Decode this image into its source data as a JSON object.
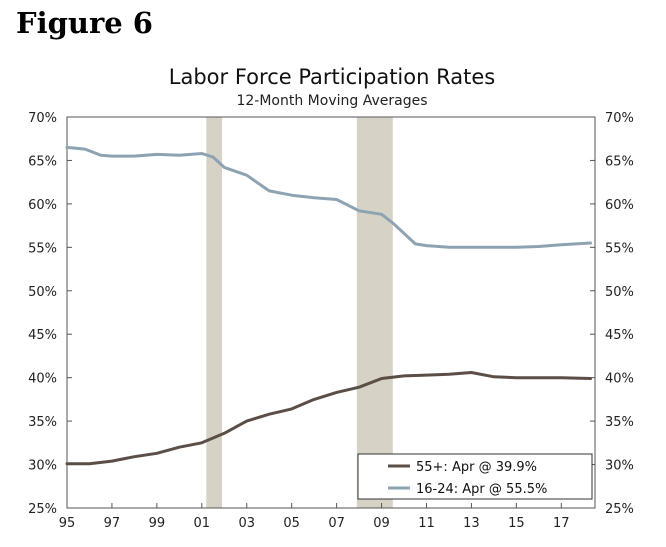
{
  "figure_label": "Figure 6",
  "chart_data": {
    "type": "line",
    "title": "Labor Force Participation Rates",
    "subtitle": "12-Month Moving Averages",
    "xlabel": "",
    "ylabel": "",
    "xlim": [
      1995,
      2018.5
    ],
    "ylim": [
      25,
      70
    ],
    "x_tick_values": [
      1995,
      1997,
      1999,
      2001,
      2003,
      2005,
      2007,
      2009,
      2011,
      2013,
      2015,
      2017
    ],
    "x_tick_labels": [
      "95",
      "97",
      "99",
      "01",
      "03",
      "05",
      "07",
      "09",
      "11",
      "13",
      "15",
      "17"
    ],
    "y_tick_values": [
      25,
      30,
      35,
      40,
      45,
      50,
      55,
      60,
      65,
      70
    ],
    "y_tick_labels": [
      "25%",
      "30%",
      "35%",
      "40%",
      "45%",
      "50%",
      "55%",
      "60%",
      "65%",
      "70%"
    ],
    "grid": false,
    "recessions": [
      [
        2001.2,
        2001.9
      ],
      [
        2007.9,
        2009.5
      ]
    ],
    "legend_position": "bottom-right",
    "series": [
      {
        "name": "55+: Apr @ 39.9%",
        "color": "#5b4e47",
        "x": [
          1995,
          1996,
          1997,
          1998,
          1999,
          2000,
          2001,
          2002,
          2003,
          2004,
          2005,
          2006,
          2007,
          2008,
          2009,
          2010,
          2011,
          2012,
          2013,
          2014,
          2015,
          2016,
          2017,
          2018.3
        ],
        "values": [
          30.1,
          30.1,
          30.4,
          30.9,
          31.3,
          32.0,
          32.5,
          33.6,
          35.0,
          35.8,
          36.4,
          37.5,
          38.3,
          38.9,
          39.9,
          40.2,
          40.3,
          40.4,
          40.6,
          40.1,
          40.0,
          40.0,
          40.0,
          39.9
        ]
      },
      {
        "name": "16-24: Apr @ 55.5%",
        "color": "#8ea3b2",
        "x": [
          1995,
          1995.8,
          1996.5,
          1997,
          1998,
          1999,
          2000,
          2001,
          2001.5,
          2002,
          2003,
          2004,
          2005,
          2006,
          2007,
          2008,
          2009,
          2009.5,
          2010,
          2010.5,
          2011,
          2012,
          2013,
          2014,
          2015,
          2016,
          2017,
          2018.3
        ],
        "values": [
          66.5,
          66.3,
          65.6,
          65.5,
          65.5,
          65.7,
          65.6,
          65.8,
          65.4,
          64.2,
          63.3,
          61.5,
          61.0,
          60.7,
          60.5,
          59.2,
          58.8,
          57.8,
          56.6,
          55.4,
          55.2,
          55.0,
          55.0,
          55.0,
          55.0,
          55.1,
          55.3,
          55.5
        ]
      }
    ]
  }
}
